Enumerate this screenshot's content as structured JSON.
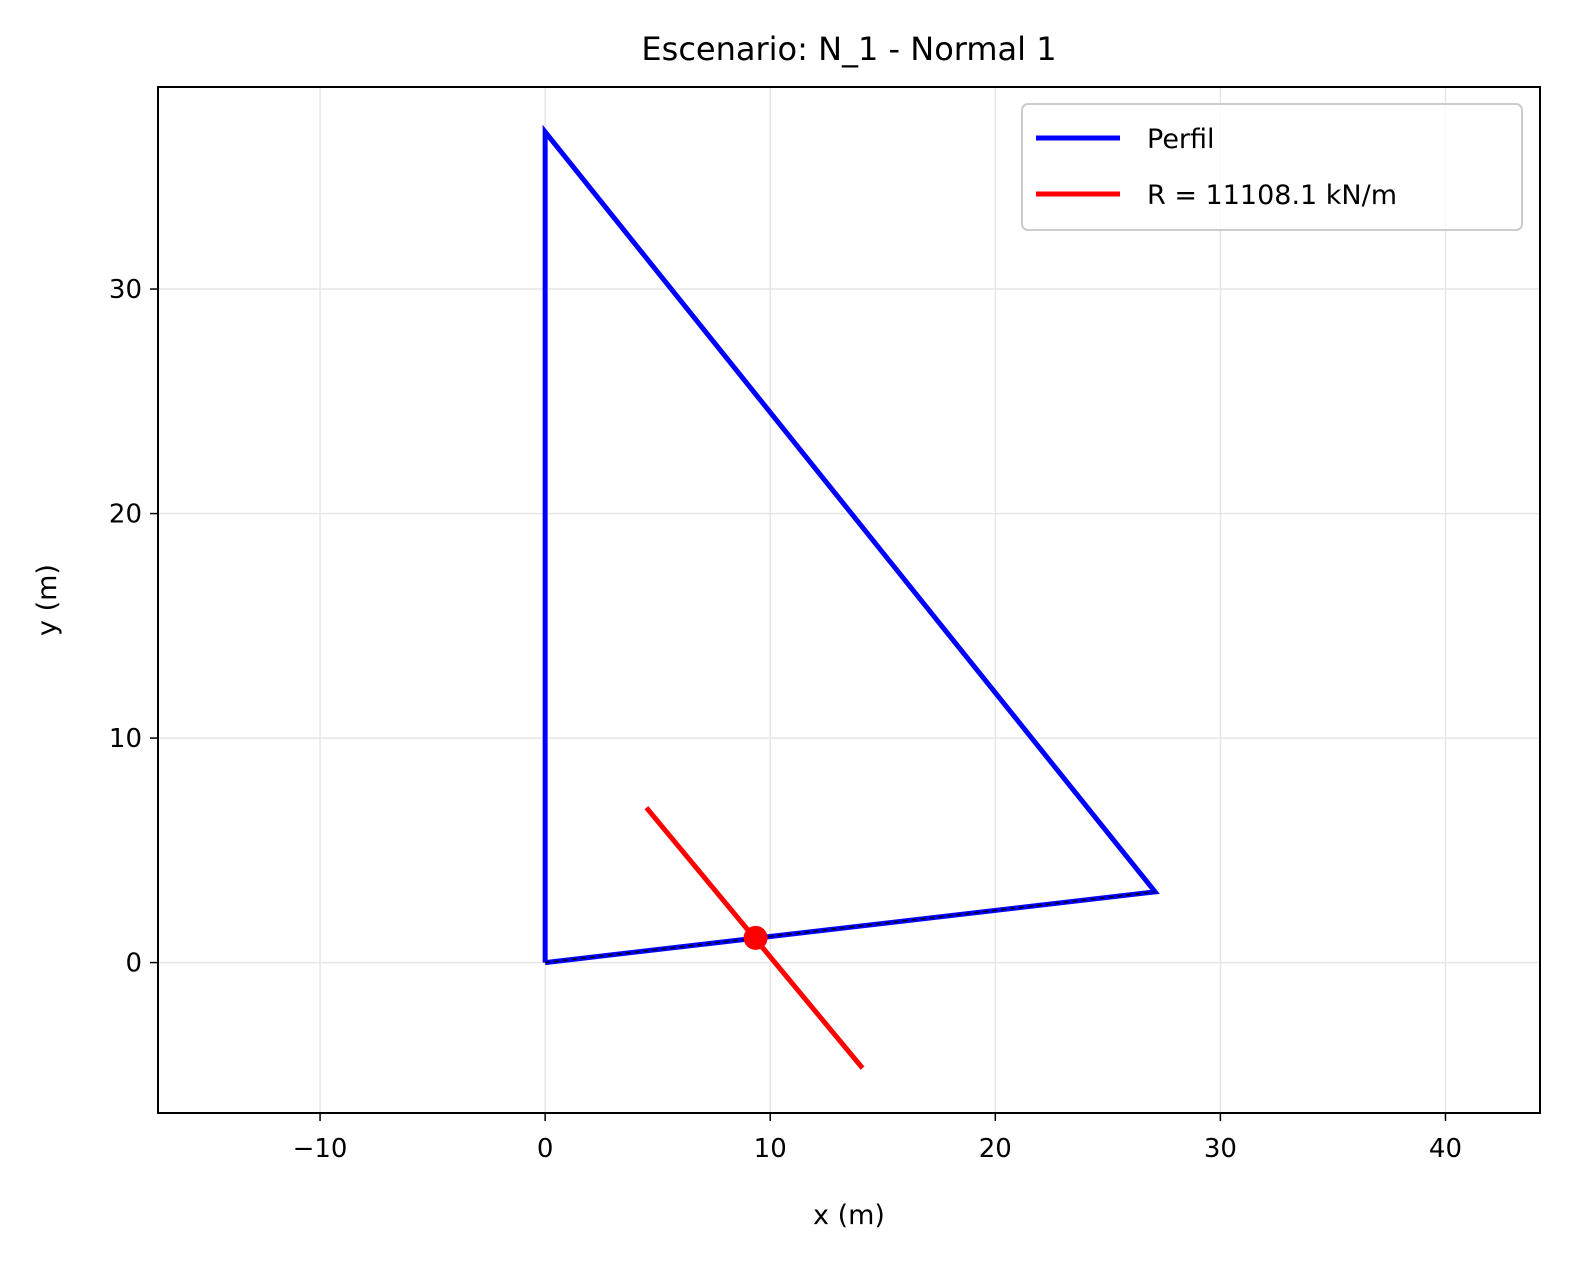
{
  "chart_data": {
    "type": "line",
    "title": "Escenario: N_1 - Normal 1",
    "xlabel": "x (m)",
    "ylabel": "y (m)",
    "xlim": [
      -17.2,
      44.2
    ],
    "ylim": [
      -6.7,
      39.0
    ],
    "xticks": [
      -10,
      0,
      10,
      20,
      30,
      40
    ],
    "xtick_labels": [
      "−10",
      "0",
      "10",
      "20",
      "30",
      "40"
    ],
    "yticks": [
      0,
      10,
      20,
      30
    ],
    "ytick_labels": [
      "0",
      "10",
      "20",
      "30"
    ],
    "grid": true,
    "legend_position": "top-right",
    "series": [
      {
        "name": "Perfil",
        "color": "#0000ff",
        "x": [
          0,
          0,
          27.1,
          0
        ],
        "y": [
          0,
          37.0,
          3.15,
          0
        ]
      },
      {
        "name": "R = 11108.1 kN/m",
        "color": "#ff0000",
        "x": [
          4.5,
          14.1
        ],
        "y": [
          6.9,
          -4.7
        ]
      }
    ],
    "base_line": {
      "color": "#000000",
      "style": "dashed",
      "x": [
        0,
        27.1
      ],
      "y": [
        0,
        3.15
      ]
    },
    "application_point": {
      "color": "#ff0000",
      "x": 9.35,
      "y": 1.1
    }
  }
}
